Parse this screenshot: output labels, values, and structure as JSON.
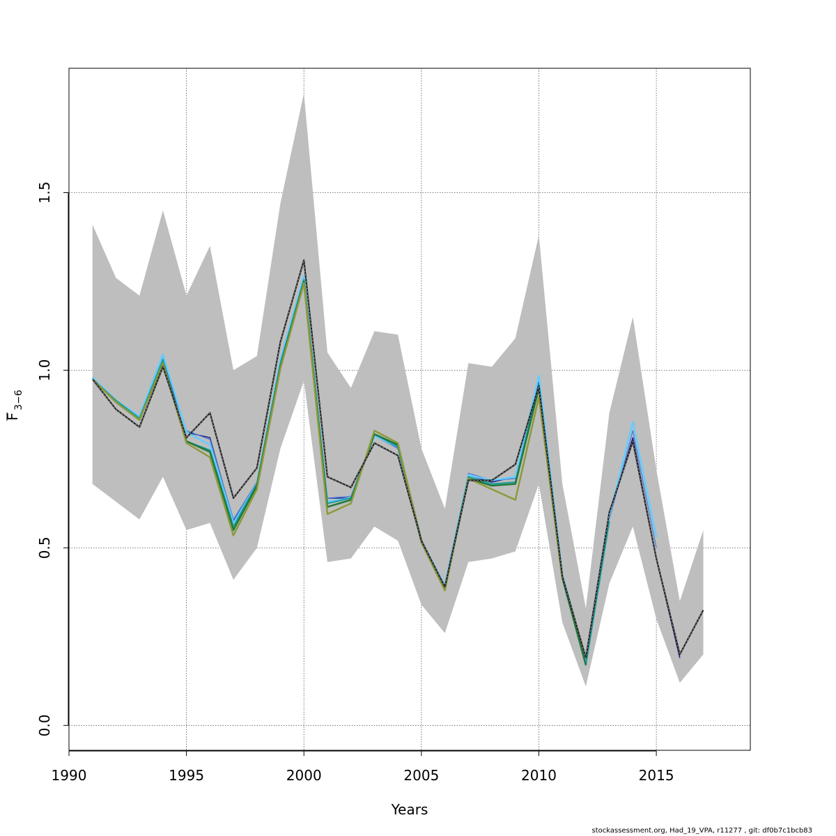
{
  "chart_data": {
    "type": "line",
    "xlabel": "Years",
    "ylabel_main": "F",
    "ylabel_sub": "3−6",
    "xlim": [
      1990,
      2019
    ],
    "ylim": [
      -0.07,
      1.85
    ],
    "x_ticks": [
      1990,
      1995,
      2000,
      2005,
      2010,
      2015
    ],
    "x_tick_labels": [
      "1990",
      "1995",
      "2000",
      "2005",
      "2010",
      "2015"
    ],
    "y_ticks": [
      0.0,
      0.5,
      1.0,
      1.5
    ],
    "y_tick_labels": [
      "0.0",
      "0.5",
      "1.0",
      "1.5"
    ],
    "grid": true,
    "band": {
      "x": [
        1991,
        1992,
        1993,
        1994,
        1995,
        1996,
        1997,
        1998,
        1999,
        2000,
        2001,
        2002,
        2003,
        2004,
        2005,
        2006,
        2007,
        2008,
        2009,
        2010,
        2011,
        2012,
        2013,
        2014,
        2015,
        2016,
        2017
      ],
      "upper": [
        1.41,
        1.26,
        1.21,
        1.45,
        1.21,
        1.35,
        1.0,
        1.04,
        1.47,
        1.78,
        1.05,
        0.95,
        1.11,
        1.1,
        0.78,
        0.61,
        1.02,
        1.01,
        1.09,
        1.38,
        0.68,
        0.33,
        0.88,
        1.15,
        0.72,
        0.35,
        0.55
      ],
      "lower": [
        0.68,
        0.63,
        0.58,
        0.7,
        0.55,
        0.57,
        0.41,
        0.5,
        0.78,
        0.97,
        0.46,
        0.47,
        0.56,
        0.52,
        0.34,
        0.26,
        0.46,
        0.47,
        0.49,
        0.68,
        0.29,
        0.11,
        0.4,
        0.56,
        0.3,
        0.12,
        0.2
      ],
      "color": "#bebebe"
    },
    "series": [
      {
        "color": "#1a1a8c",
        "width": 1.5,
        "dashed": false,
        "x": [
          1991,
          1992,
          1993,
          1994,
          1995,
          1996,
          1997,
          1998,
          1999,
          2000,
          2001,
          2002,
          2003,
          2004,
          2005,
          2006,
          2007,
          2008,
          2009,
          2010,
          2011,
          2012,
          2013,
          2014,
          2015,
          2016
        ],
        "y": [
          0.975,
          0.91,
          0.86,
          1.03,
          0.825,
          0.81,
          0.575,
          0.68,
          1.02,
          1.26,
          0.64,
          0.64,
          0.82,
          0.78,
          0.52,
          0.39,
          0.705,
          0.685,
          0.7,
          0.97,
          0.42,
          0.17,
          0.59,
          0.81,
          0.47,
          0.19
        ]
      },
      {
        "color": "#4a7fd4",
        "width": 1.3,
        "dashed": false,
        "x": [
          1991,
          1992,
          1993,
          1994,
          1995,
          1996,
          1997,
          1998,
          1999,
          2000,
          2001,
          2002,
          2003,
          2004,
          2005,
          2006,
          2007,
          2008,
          2009,
          2010,
          2011,
          2012,
          2013,
          2014,
          2015
        ],
        "y": [
          0.98,
          0.915,
          0.87,
          1.04,
          0.83,
          0.805,
          0.58,
          0.685,
          1.03,
          1.265,
          0.64,
          0.645,
          0.815,
          0.78,
          0.52,
          0.39,
          0.71,
          0.69,
          0.695,
          0.975,
          0.42,
          0.17,
          0.58,
          0.83,
          0.5
        ]
      },
      {
        "color": "#66ccff",
        "width": 2.5,
        "dashed": false,
        "x": [
          1991,
          1992,
          1993,
          1994,
          1995,
          1996,
          1997,
          1998,
          1999,
          2000,
          2001,
          2002,
          2003,
          2004,
          2005,
          2006,
          2007,
          2008,
          2009,
          2010,
          2011,
          2012,
          2013,
          2014,
          2015
        ],
        "y": [
          0.98,
          0.915,
          0.87,
          1.045,
          0.825,
          0.79,
          0.57,
          0.68,
          1.03,
          1.265,
          0.63,
          0.64,
          0.815,
          0.785,
          0.52,
          0.395,
          0.705,
          0.69,
          0.7,
          0.985,
          0.425,
          0.18,
          0.59,
          0.855,
          0.53
        ]
      },
      {
        "color": "#1a9c9c",
        "width": 2,
        "dashed": false,
        "x": [
          1991,
          1992,
          1993,
          1994,
          1995,
          1996,
          1997,
          1998,
          1999,
          2000,
          2001,
          2002,
          2003,
          2004,
          2005,
          2006,
          2007,
          2008,
          2009,
          2010,
          2011,
          2012,
          2013
        ],
        "y": [
          0.975,
          0.915,
          0.865,
          1.03,
          0.8,
          0.775,
          0.56,
          0.68,
          1.02,
          1.255,
          0.625,
          0.64,
          0.82,
          0.785,
          0.52,
          0.39,
          0.7,
          0.68,
          0.685,
          0.96,
          0.42,
          0.17,
          0.575
        ]
      },
      {
        "color": "#1f7a3a",
        "width": 2.5,
        "dashed": false,
        "x": [
          1991,
          1992,
          1993,
          1994,
          1995,
          1996,
          1997,
          1998,
          1999,
          2000,
          2001,
          2002,
          2003,
          2004,
          2005,
          2006,
          2007,
          2008,
          2009,
          2010,
          2011,
          2012
        ],
        "y": [
          0.975,
          0.91,
          0.86,
          1.02,
          0.8,
          0.77,
          0.55,
          0.675,
          1.01,
          1.25,
          0.615,
          0.635,
          0.82,
          0.79,
          0.52,
          0.385,
          0.695,
          0.675,
          0.68,
          0.95,
          0.415,
          0.17
        ]
      },
      {
        "color": "#8c9a3a",
        "width": 2.5,
        "dashed": false,
        "x": [
          1991,
          1992,
          1993,
          1994,
          1995,
          1996,
          1997,
          1998,
          1999,
          2000,
          2001,
          2002,
          2003,
          2004,
          2005,
          2006,
          2007,
          2008,
          2009,
          2010,
          2011
        ],
        "y": [
          0.975,
          0.91,
          0.86,
          1.02,
          0.795,
          0.755,
          0.535,
          0.665,
          1.005,
          1.245,
          0.595,
          0.625,
          0.83,
          0.795,
          0.515,
          0.38,
          0.695,
          0.665,
          0.635,
          0.925,
          0.41
        ]
      },
      {
        "color": "#222222",
        "width": 2.2,
        "dashed": true,
        "x": [
          1991,
          1992,
          1993,
          1994,
          1995,
          1996,
          1997,
          1998,
          1999,
          2000,
          2001,
          2002,
          2003,
          2004,
          2005,
          2006,
          2007,
          2008,
          2009,
          2010,
          2011,
          2012,
          2013,
          2014,
          2015,
          2016,
          2017
        ],
        "y": [
          0.975,
          0.89,
          0.84,
          1.01,
          0.81,
          0.88,
          0.64,
          0.725,
          1.08,
          1.31,
          0.7,
          0.67,
          0.795,
          0.76,
          0.52,
          0.39,
          0.69,
          0.69,
          0.735,
          0.955,
          0.42,
          0.19,
          0.6,
          0.8,
          0.47,
          0.2,
          0.325
        ]
      }
    ]
  },
  "footer": {
    "text": "stockassessment.org, Had_19_VPA, r11277 , git: df0b7c1bcb83"
  }
}
